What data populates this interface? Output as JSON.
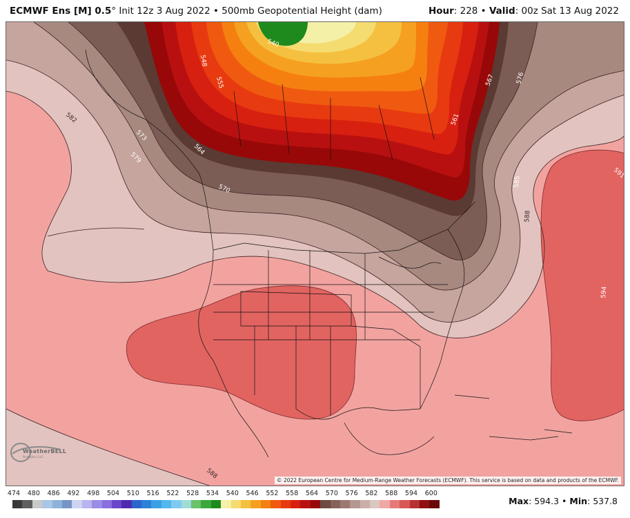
{
  "header": {
    "model": "ECMWF Ens [M] 0.5",
    "degree": "°",
    "init": " Init 12z 3 Aug 2022",
    "sep": " • ",
    "field": "500mb Geopotential Height (dam)",
    "hour_label": "Hour",
    "hour_value": ": 228",
    "valid_label": "Valid",
    "valid_value": ": 00z Sat 13 Aug 2022"
  },
  "map": {
    "contour_labels": {
      "l540": "540",
      "l548": "548",
      "l555": "555",
      "l567": "567",
      "l561": "561",
      "l576": "576",
      "l582": "582",
      "l573": "573",
      "l579": "579",
      "l570": "570",
      "l585": "585",
      "l588": "588",
      "l591": "591",
      "l594": "594",
      "l588b": "588",
      "l564": "564"
    },
    "copyright": "© 2022 European Centre for Medium-Range Weather Forecasts (ECMWF). This service is based on data and products of the ECMWF.",
    "logo_text": "WeatherBELL",
    "logo_sub": "Analytics LLC"
  },
  "colorbar": {
    "labels": [
      "474",
      "480",
      "486",
      "492",
      "498",
      "504",
      "510",
      "516",
      "522",
      "528",
      "534",
      "540",
      "546",
      "552",
      "558",
      "564",
      "570",
      "576",
      "582",
      "588",
      "594",
      "600"
    ],
    "colors": [
      "#3a3a3a",
      "#5e5e5e",
      "#c9c9c9",
      "#a9c6e6",
      "#8fb2d8",
      "#7596c4",
      "#cfd3f0",
      "#b7b6ee",
      "#9b8ce6",
      "#8a6fe0",
      "#6a47c9",
      "#4f2ab0",
      "#2a66cc",
      "#2c80d8",
      "#3aa0e4",
      "#52b8ee",
      "#7fcaf0",
      "#9fdcd8",
      "#6ac26a",
      "#3aa83a",
      "#1e8a1e",
      "#f5f0a8",
      "#f5dc70",
      "#f5c040",
      "#f5a020",
      "#f58010",
      "#f05a10",
      "#e83a10",
      "#d82010",
      "#b81010",
      "#980808",
      "#6e4a42",
      "#86625a",
      "#9c7a72",
      "#b49890",
      "#c9b0a8",
      "#dcc6c0",
      "#f0a8a6",
      "#e67a78",
      "#d85858",
      "#b83232",
      "#901010",
      "#6a0808"
    ]
  },
  "maxmin": {
    "max_label": "Max",
    "max_value": ": 594.3",
    "sep": " • ",
    "min_label": "Min",
    "min_value": ": 537.8"
  }
}
